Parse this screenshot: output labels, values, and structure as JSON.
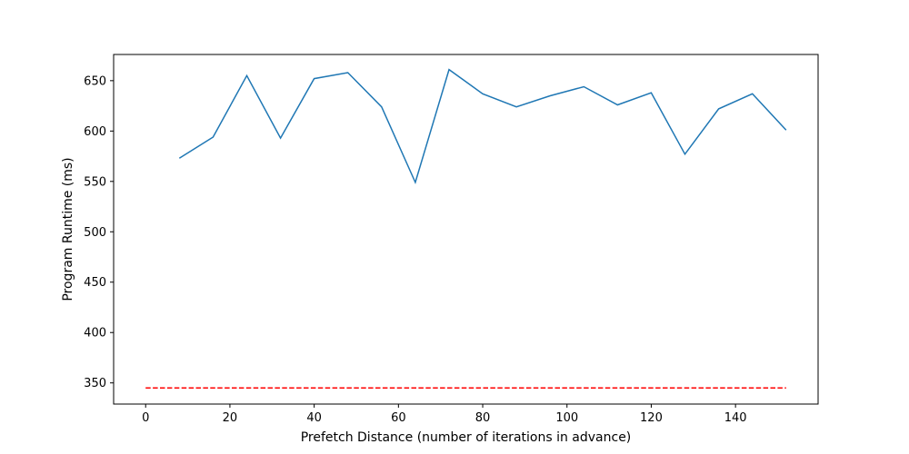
{
  "chart_data": {
    "type": "line",
    "title": "",
    "xlabel": "Prefetch Distance (number of iterations in advance)",
    "ylabel": "Program Runtime (ms)",
    "xlim": [
      -7.6,
      159.6
    ],
    "ylim": [
      329,
      676
    ],
    "xticks": [
      0,
      20,
      40,
      60,
      80,
      100,
      120,
      140
    ],
    "yticks": [
      350,
      400,
      450,
      500,
      550,
      600,
      650
    ],
    "grid": false,
    "legend": "none",
    "series": [
      {
        "style": "solid",
        "color": "#1f77b4",
        "x": [
          8,
          16,
          24,
          32,
          40,
          48,
          56,
          64,
          72,
          80,
          88,
          96,
          104,
          112,
          120,
          128,
          136,
          144,
          152
        ],
        "y": [
          573,
          594,
          655,
          593,
          652,
          658,
          624,
          549,
          661,
          637,
          624,
          635,
          644,
          626,
          638,
          577,
          622,
          637,
          601
        ]
      },
      {
        "style": "dashed",
        "color": "#ff0000",
        "x": [
          0,
          152
        ],
        "y": [
          345,
          345
        ]
      }
    ]
  }
}
